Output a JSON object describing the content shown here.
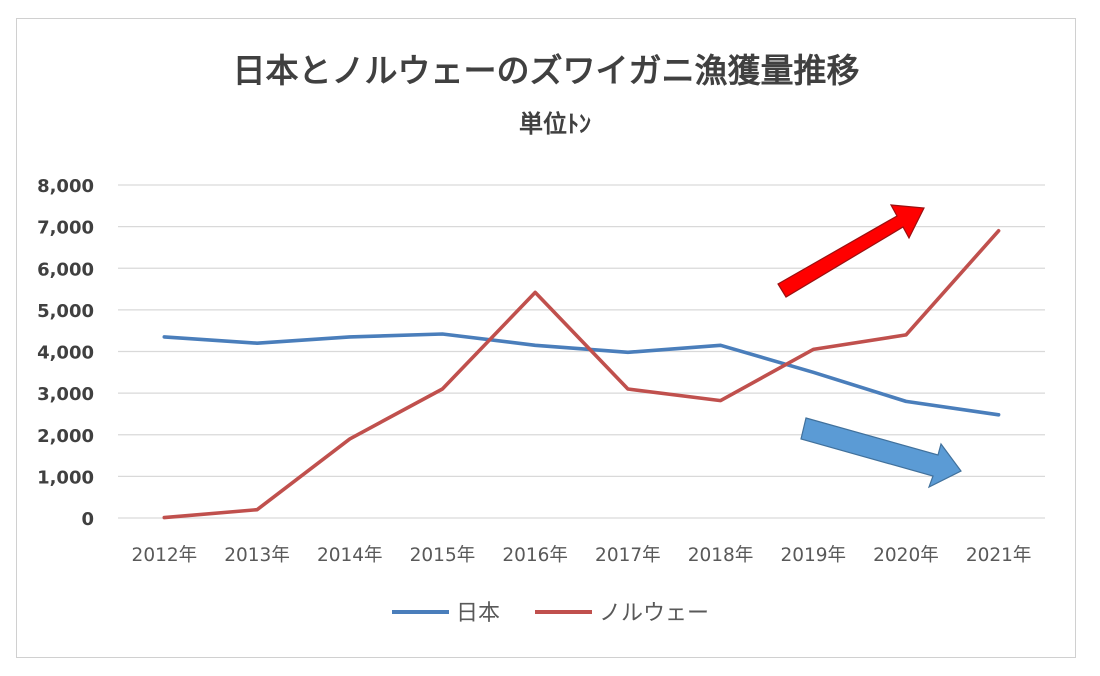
{
  "chart_data": {
    "type": "line",
    "title": "日本とノルウェーのズワイガニ漁獲量推移",
    "subtitle": "単位ﾄﾝ",
    "categories": [
      "2012年",
      "2013年",
      "2014年",
      "2015年",
      "2016年",
      "2017年",
      "2018年",
      "2019年",
      "2020年",
      "2021年"
    ],
    "series": [
      {
        "name": "日本",
        "color": "#4a7ebb",
        "values": [
          4350,
          4200,
          4350,
          4420,
          4150,
          3980,
          4150,
          3500,
          2800,
          2480
        ]
      },
      {
        "name": "ノルウェー",
        "color": "#c0504d",
        "values": [
          10,
          200,
          1900,
          3100,
          5420,
          3100,
          2820,
          4050,
          4400,
          6900
        ]
      }
    ],
    "ylim": [
      0,
      8000
    ],
    "yticks": [
      "0",
      "1,000",
      "2,000",
      "3,000",
      "4,000",
      "5,000",
      "6,000",
      "7,000",
      "8,000"
    ],
    "grid": true,
    "legend": "bottom",
    "annotations": [
      {
        "shape": "arrow-up",
        "color": "#ff0000"
      },
      {
        "shape": "arrow-down",
        "color": "#5b9bd5"
      }
    ]
  }
}
